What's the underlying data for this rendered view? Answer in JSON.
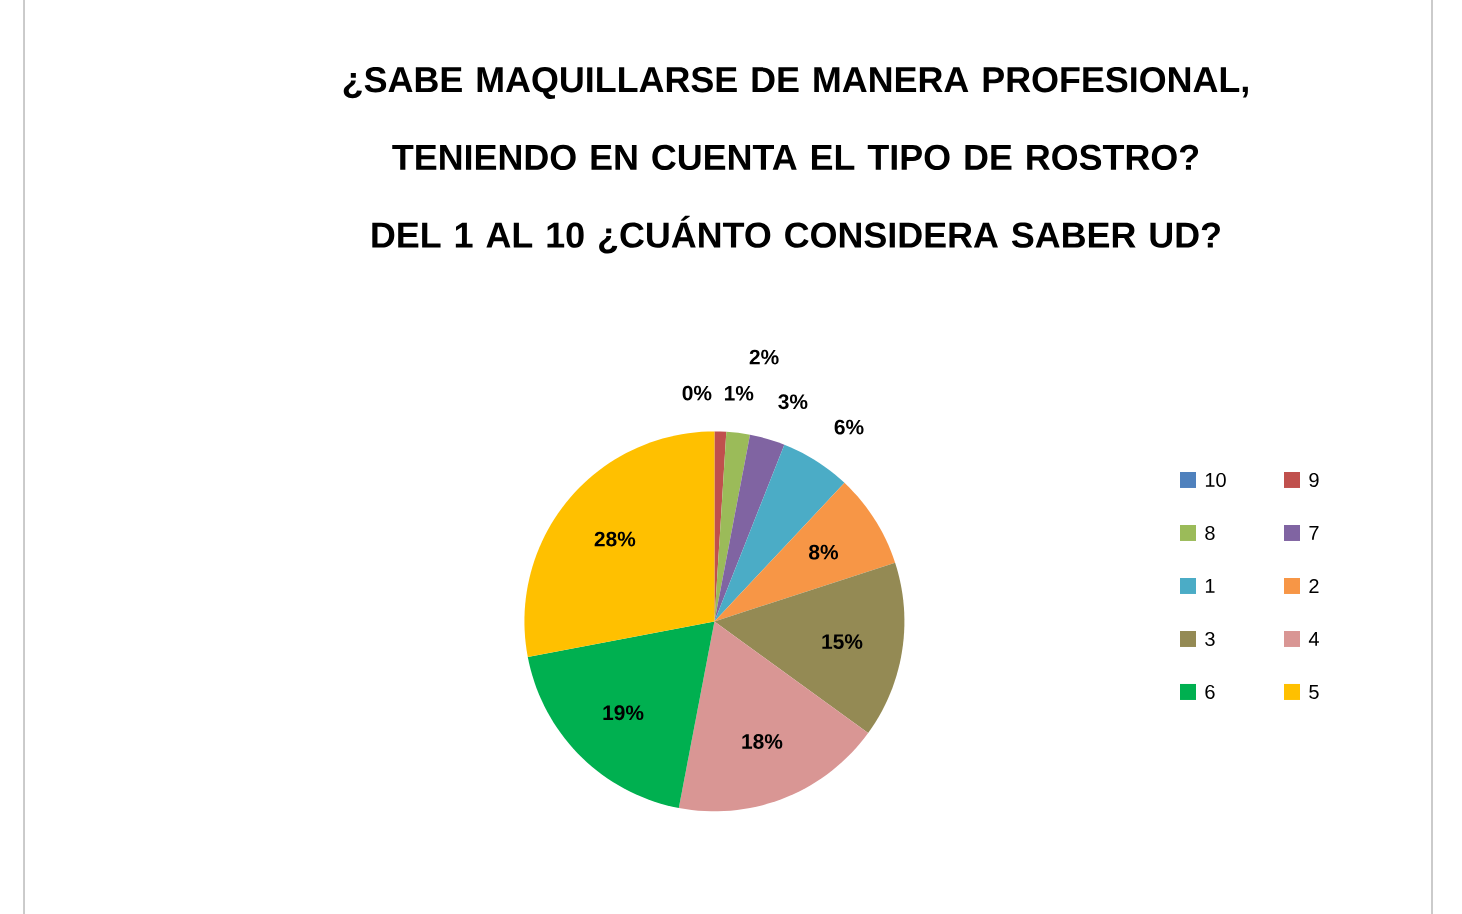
{
  "chart_data": {
    "type": "pie",
    "title": "¿SABE MAQUILLARSE DE MANERA PROFESIONAL, TENIENDO EN CUENTA EL TIPO DE ROSTRO? DEL 1 AL 10 ¿CUÁNTO CONSIDERA SABER UD?",
    "categories": [
      "10",
      "9",
      "8",
      "7",
      "1",
      "2",
      "3",
      "4",
      "6",
      "5"
    ],
    "values": [
      0,
      1,
      2,
      3,
      6,
      8,
      15,
      18,
      19,
      28
    ],
    "value_labels": [
      "0%",
      "1%",
      "2%",
      "3%",
      "6%",
      "8%",
      "15%",
      "18%",
      "19%",
      "28%"
    ],
    "colors": [
      "#4f81bd",
      "#c0504d",
      "#9bbb59",
      "#8064a2",
      "#4bacc6",
      "#f79646",
      "#948a54",
      "#d99694",
      "#00b050",
      "#ffc000"
    ],
    "legend": "right"
  }
}
